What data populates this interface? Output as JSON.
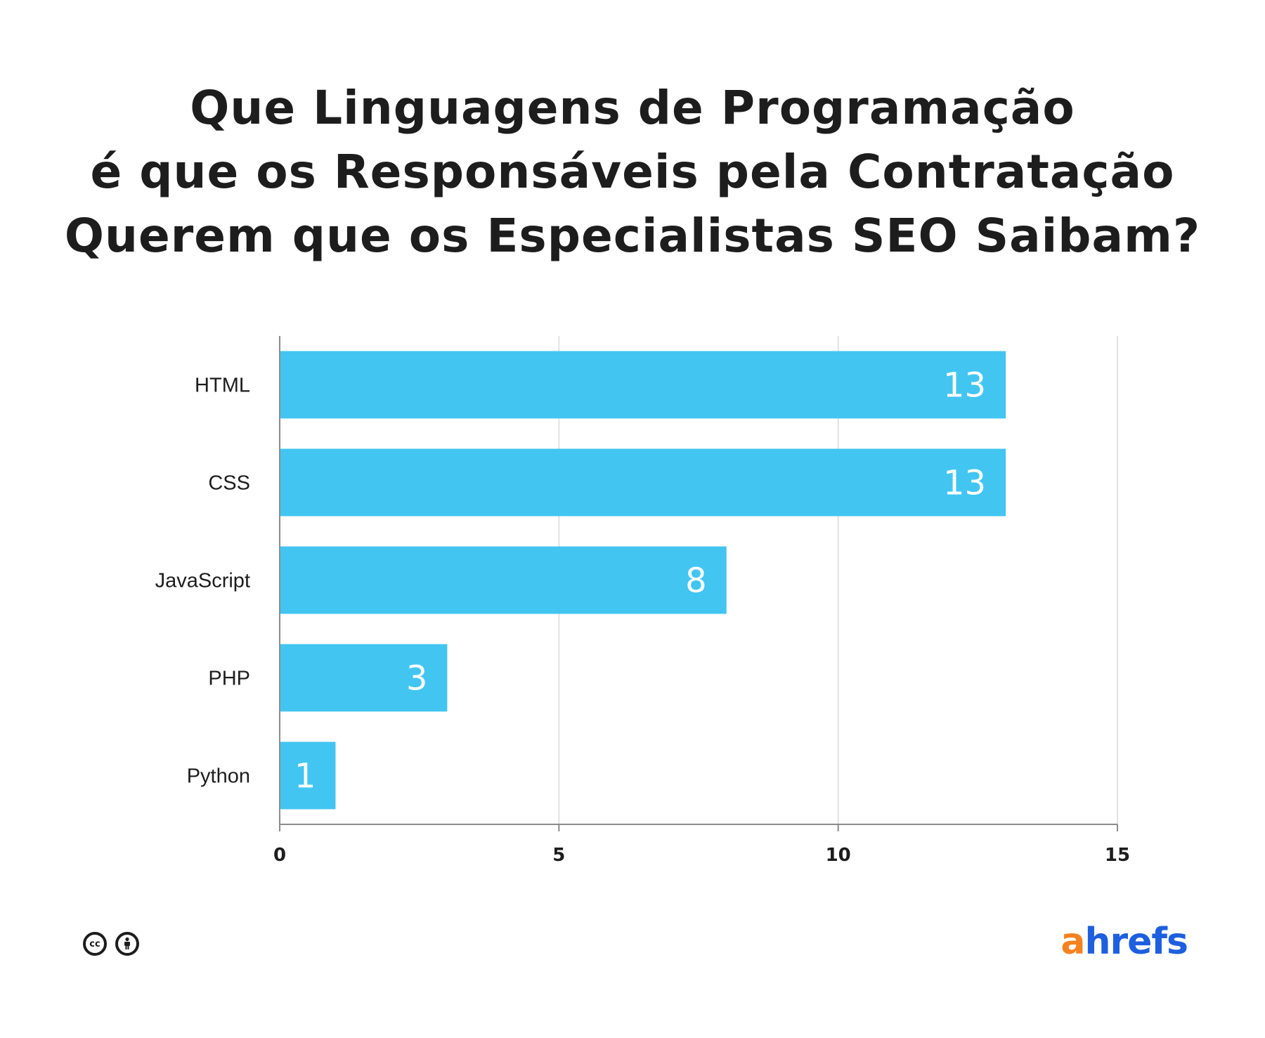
{
  "title_lines": [
    "Que Linguagens de Programação",
    "é que os Responsáveis pela Contratação",
    "Querem que os Especialistas SEO Saibam?"
  ],
  "chart_data": {
    "type": "bar",
    "orientation": "horizontal",
    "title": "Que Linguagens de Programação é que os Responsáveis pela Contratação Querem que os Especialistas SEO Saibam?",
    "categories": [
      "HTML",
      "CSS",
      "JavaScript",
      "PHP",
      "Python"
    ],
    "values": [
      13,
      13,
      8,
      3,
      1
    ],
    "xlim": [
      0,
      15
    ],
    "xticks": [
      "0",
      "5",
      "10",
      "15"
    ],
    "xlabel": "",
    "ylabel": "",
    "grid": true,
    "bar_color": "#42c5f0",
    "data_label_color": "#ffffff"
  },
  "footer": {
    "license_icons": [
      "cc-icon",
      "attribution-icon"
    ],
    "cc_text": "cc",
    "brand_first": "a",
    "brand_rest": "hrefs"
  },
  "colors": {
    "bar": "#42c5f0",
    "text": "#1d1d1d",
    "grid": "#d9d9d9",
    "axis": "#8c8c8c",
    "brand_orange": "#f58220",
    "brand_blue": "#1e5fe0"
  }
}
